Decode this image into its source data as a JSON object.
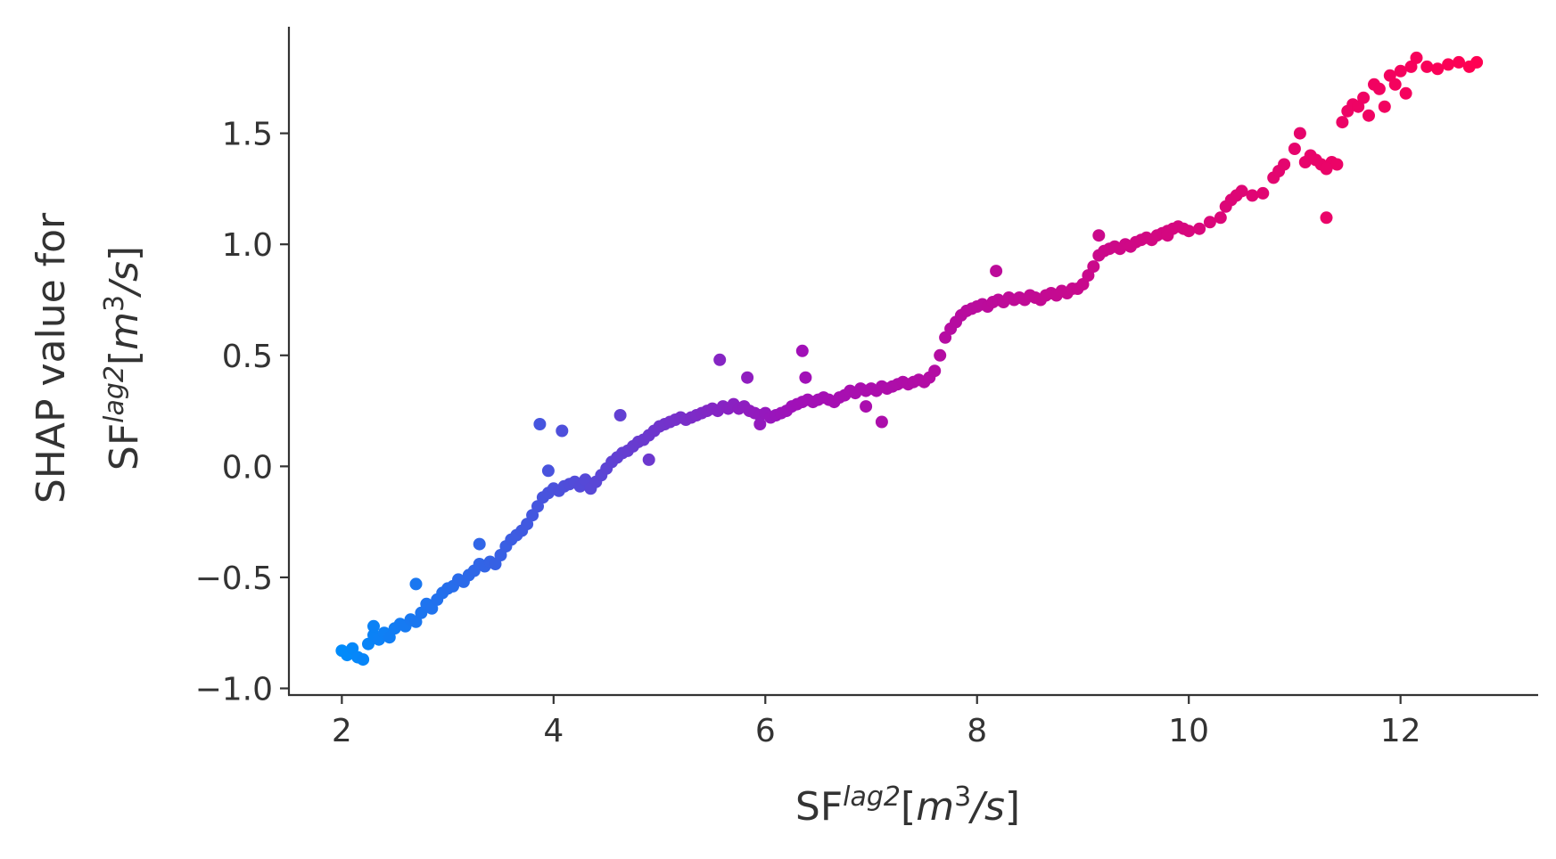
{
  "chart_data": {
    "type": "scatter",
    "xlabel": {
      "base": "SF",
      "sup": "lag2",
      "bracket_open": "[",
      "unit_m": "m",
      "unit_exp": "3",
      "unit_rest": "/s",
      "bracket_close": "]"
    },
    "ylabel": {
      "line1": "SHAP value for",
      "base": "SF",
      "sup": "lag2",
      "bracket_open": "[",
      "unit_m": "m",
      "unit_exp": "3",
      "unit_rest": "/s",
      "bracket_close": "]"
    },
    "xlim": [
      1.5,
      13.3
    ],
    "ylim": [
      -1.03,
      1.98
    ],
    "x_ticks": [
      2,
      4,
      6,
      8,
      10,
      12
    ],
    "y_ticks": [
      -1.0,
      -0.5,
      0.0,
      0.5,
      1.0,
      1.5
    ],
    "x_tick_labels": [
      "2",
      "4",
      "6",
      "8",
      "10",
      "12"
    ],
    "y_tick_labels": [
      "−1.0",
      "−0.5",
      "0.0",
      "0.5",
      "1.0",
      "1.5"
    ],
    "grid": false,
    "color_scale": {
      "low": "#008bfb",
      "mid": "#a010b8",
      "high": "#ff0052"
    },
    "points": [
      [
        2.0,
        -0.83
      ],
      [
        2.05,
        -0.85
      ],
      [
        2.1,
        -0.82
      ],
      [
        2.15,
        -0.86
      ],
      [
        2.2,
        -0.87
      ],
      [
        2.25,
        -0.8
      ],
      [
        2.3,
        -0.76
      ],
      [
        2.35,
        -0.78
      ],
      [
        2.4,
        -0.75
      ],
      [
        2.45,
        -0.77
      ],
      [
        2.5,
        -0.73
      ],
      [
        2.55,
        -0.71
      ],
      [
        2.6,
        -0.72
      ],
      [
        2.65,
        -0.69
      ],
      [
        2.7,
        -0.7
      ],
      [
        2.75,
        -0.66
      ],
      [
        2.8,
        -0.62
      ],
      [
        2.85,
        -0.64
      ],
      [
        2.9,
        -0.6
      ],
      [
        2.95,
        -0.57
      ],
      [
        3.0,
        -0.55
      ],
      [
        3.05,
        -0.54
      ],
      [
        3.1,
        -0.51
      ],
      [
        3.15,
        -0.52
      ],
      [
        3.2,
        -0.49
      ],
      [
        3.25,
        -0.47
      ],
      [
        3.3,
        -0.44
      ],
      [
        3.35,
        -0.45
      ],
      [
        3.4,
        -0.43
      ],
      [
        3.45,
        -0.44
      ],
      [
        3.5,
        -0.4
      ],
      [
        3.55,
        -0.36
      ],
      [
        3.6,
        -0.33
      ],
      [
        3.65,
        -0.31
      ],
      [
        3.7,
        -0.29
      ],
      [
        3.75,
        -0.26
      ],
      [
        3.8,
        -0.22
      ],
      [
        3.85,
        -0.18
      ],
      [
        3.9,
        -0.14
      ],
      [
        3.95,
        -0.12
      ],
      [
        4.0,
        -0.1
      ],
      [
        4.05,
        -0.11
      ],
      [
        4.1,
        -0.09
      ],
      [
        4.15,
        -0.08
      ],
      [
        4.2,
        -0.07
      ],
      [
        4.25,
        -0.09
      ],
      [
        4.3,
        -0.06
      ],
      [
        4.35,
        -0.1
      ],
      [
        4.4,
        -0.07
      ],
      [
        4.45,
        -0.04
      ],
      [
        4.5,
        -0.01
      ],
      [
        4.55,
        0.02
      ],
      [
        4.6,
        0.04
      ],
      [
        4.65,
        0.06
      ],
      [
        4.7,
        0.07
      ],
      [
        4.75,
        0.09
      ],
      [
        4.8,
        0.11
      ],
      [
        4.85,
        0.12
      ],
      [
        4.9,
        0.14
      ],
      [
        4.95,
        0.16
      ],
      [
        5.0,
        0.18
      ],
      [
        5.05,
        0.19
      ],
      [
        5.1,
        0.2
      ],
      [
        5.15,
        0.21
      ],
      [
        5.2,
        0.22
      ],
      [
        5.25,
        0.21
      ],
      [
        5.3,
        0.22
      ],
      [
        5.35,
        0.23
      ],
      [
        5.4,
        0.24
      ],
      [
        5.45,
        0.25
      ],
      [
        5.5,
        0.26
      ],
      [
        5.55,
        0.25
      ],
      [
        5.6,
        0.27
      ],
      [
        5.65,
        0.26
      ],
      [
        5.7,
        0.28
      ],
      [
        5.75,
        0.26
      ],
      [
        5.8,
        0.27
      ],
      [
        5.85,
        0.25
      ],
      [
        5.9,
        0.24
      ],
      [
        5.95,
        0.23
      ],
      [
        6.0,
        0.24
      ],
      [
        6.05,
        0.22
      ],
      [
        6.1,
        0.23
      ],
      [
        6.15,
        0.24
      ],
      [
        6.2,
        0.25
      ],
      [
        6.25,
        0.27
      ],
      [
        6.3,
        0.28
      ],
      [
        6.35,
        0.29
      ],
      [
        6.4,
        0.3
      ],
      [
        6.45,
        0.29
      ],
      [
        6.5,
        0.3
      ],
      [
        6.55,
        0.31
      ],
      [
        6.6,
        0.3
      ],
      [
        6.65,
        0.29
      ],
      [
        6.7,
        0.31
      ],
      [
        6.75,
        0.32
      ],
      [
        6.8,
        0.34
      ],
      [
        6.85,
        0.33
      ],
      [
        6.9,
        0.35
      ],
      [
        6.95,
        0.34
      ],
      [
        7.0,
        0.35
      ],
      [
        7.05,
        0.34
      ],
      [
        7.1,
        0.36
      ],
      [
        7.15,
        0.35
      ],
      [
        7.2,
        0.36
      ],
      [
        7.25,
        0.37
      ],
      [
        7.3,
        0.38
      ],
      [
        7.35,
        0.37
      ],
      [
        7.4,
        0.38
      ],
      [
        7.45,
        0.39
      ],
      [
        7.5,
        0.38
      ],
      [
        7.55,
        0.4
      ],
      [
        7.6,
        0.43
      ],
      [
        7.65,
        0.5
      ],
      [
        7.7,
        0.58
      ],
      [
        7.75,
        0.62
      ],
      [
        7.8,
        0.65
      ],
      [
        7.85,
        0.68
      ],
      [
        7.9,
        0.7
      ],
      [
        7.95,
        0.71
      ],
      [
        8.0,
        0.72
      ],
      [
        8.05,
        0.73
      ],
      [
        8.1,
        0.72
      ],
      [
        8.15,
        0.74
      ],
      [
        8.2,
        0.75
      ],
      [
        8.25,
        0.74
      ],
      [
        8.3,
        0.76
      ],
      [
        8.35,
        0.75
      ],
      [
        8.4,
        0.76
      ],
      [
        8.45,
        0.75
      ],
      [
        8.5,
        0.77
      ],
      [
        8.55,
        0.76
      ],
      [
        8.6,
        0.75
      ],
      [
        8.65,
        0.77
      ],
      [
        8.7,
        0.78
      ],
      [
        8.75,
        0.77
      ],
      [
        8.8,
        0.79
      ],
      [
        8.85,
        0.78
      ],
      [
        8.9,
        0.8
      ],
      [
        8.95,
        0.8
      ],
      [
        9.0,
        0.82
      ],
      [
        9.05,
        0.86
      ],
      [
        9.1,
        0.9
      ],
      [
        9.15,
        0.95
      ],
      [
        9.2,
        0.97
      ],
      [
        9.25,
        0.98
      ],
      [
        9.3,
        0.99
      ],
      [
        9.35,
        0.98
      ],
      [
        9.4,
        1.0
      ],
      [
        9.45,
        0.99
      ],
      [
        9.5,
        1.01
      ],
      [
        9.55,
        1.02
      ],
      [
        9.6,
        1.03
      ],
      [
        9.65,
        1.02
      ],
      [
        9.7,
        1.04
      ],
      [
        9.75,
        1.05
      ],
      [
        9.8,
        1.06
      ],
      [
        9.85,
        1.07
      ],
      [
        9.9,
        1.08
      ],
      [
        9.95,
        1.07
      ],
      [
        10.0,
        1.06
      ],
      [
        10.1,
        1.07
      ],
      [
        10.2,
        1.1
      ],
      [
        10.3,
        1.12
      ],
      [
        10.35,
        1.17
      ],
      [
        10.4,
        1.2
      ],
      [
        10.45,
        1.22
      ],
      [
        10.5,
        1.24
      ],
      [
        10.6,
        1.22
      ],
      [
        10.7,
        1.23
      ],
      [
        10.8,
        1.3
      ],
      [
        10.85,
        1.33
      ],
      [
        10.9,
        1.36
      ],
      [
        11.0,
        1.43
      ],
      [
        11.05,
        1.5
      ],
      [
        11.1,
        1.37
      ],
      [
        11.15,
        1.4
      ],
      [
        11.2,
        1.38
      ],
      [
        11.25,
        1.36
      ],
      [
        11.3,
        1.12
      ],
      [
        11.35,
        1.37
      ],
      [
        11.4,
        1.36
      ],
      [
        11.45,
        1.55
      ],
      [
        11.5,
        1.6
      ],
      [
        11.55,
        1.63
      ],
      [
        11.6,
        1.62
      ],
      [
        11.65,
        1.66
      ],
      [
        11.7,
        1.58
      ],
      [
        11.75,
        1.72
      ],
      [
        11.8,
        1.7
      ],
      [
        11.85,
        1.62
      ],
      [
        11.9,
        1.76
      ],
      [
        11.95,
        1.72
      ],
      [
        12.0,
        1.78
      ],
      [
        12.05,
        1.68
      ],
      [
        12.1,
        1.8
      ],
      [
        12.15,
        1.84
      ],
      [
        12.25,
        1.8
      ],
      [
        12.35,
        1.79
      ],
      [
        12.45,
        1.81
      ],
      [
        12.55,
        1.82
      ],
      [
        12.65,
        1.8
      ],
      [
        12.72,
        1.82
      ],
      [
        3.87,
        0.19
      ],
      [
        4.08,
        0.16
      ],
      [
        3.95,
        -0.02
      ],
      [
        4.63,
        0.23
      ],
      [
        5.57,
        0.48
      ],
      [
        6.35,
        0.52
      ],
      [
        6.38,
        0.4
      ],
      [
        5.83,
        0.4
      ],
      [
        6.95,
        0.27
      ],
      [
        7.1,
        0.2
      ],
      [
        8.18,
        0.88
      ],
      [
        3.3,
        -0.35
      ],
      [
        2.7,
        -0.53
      ],
      [
        2.3,
        -0.72
      ],
      [
        4.9,
        0.03
      ],
      [
        5.95,
        0.19
      ],
      [
        9.15,
        1.04
      ],
      [
        9.8,
        1.04
      ],
      [
        11.3,
        1.34
      ]
    ]
  }
}
